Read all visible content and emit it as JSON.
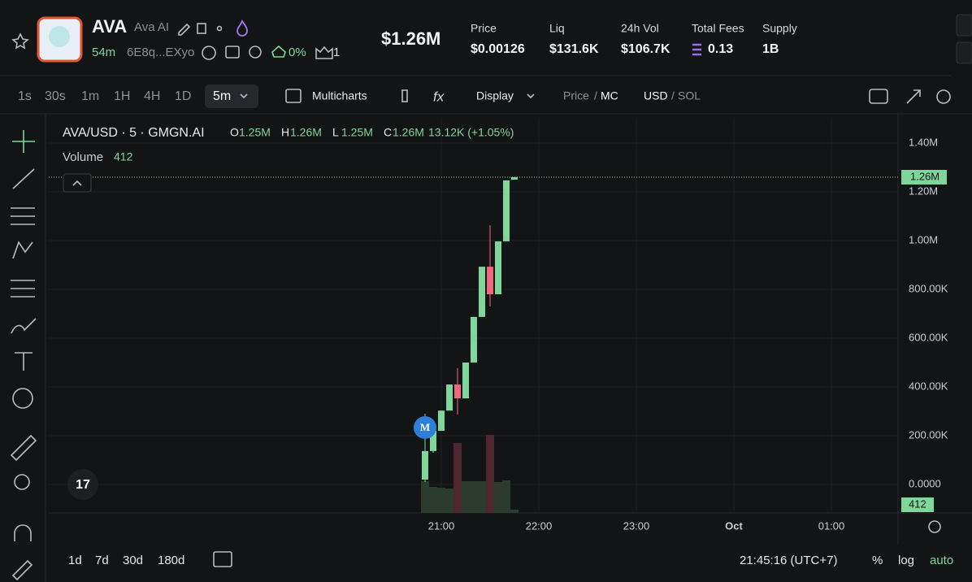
{
  "header": {
    "symbol": "AVA",
    "name": "Ava AI",
    "age": "54m",
    "address": "6E8q...EXyo",
    "holders_pct": "0%",
    "count": "1",
    "market_cap": "$1.26M",
    "stats": [
      {
        "label": "Price",
        "value": "$0.00126"
      },
      {
        "label": "Liq",
        "value": "$131.6K"
      },
      {
        "label": "24h Vol",
        "value": "$106.7K"
      },
      {
        "label": "Total Fees",
        "value": "0.13"
      },
      {
        "label": "Supply",
        "value": "1B"
      }
    ]
  },
  "toolbar": {
    "intervals": [
      "1s",
      "30s",
      "1m",
      "1H",
      "4H",
      "1D"
    ],
    "selected": "5m",
    "multicharts": "Multicharts",
    "display": "Display",
    "price": "Price",
    "mc": "MC",
    "usd": "USD",
    "sol": "SOL"
  },
  "chart": {
    "type": "candlestick",
    "legend": {
      "symbol": "AVA/USD · 5 · GMGN.AI",
      "ohlc": [
        {
          "key": "O",
          "value": "1.25M"
        },
        {
          "key": "H",
          "value": "1.26M"
        },
        {
          "key": "L",
          "value": "1.25M"
        },
        {
          "key": "C",
          "value": "1.26M"
        }
      ],
      "change": "13.12K (+1.05%)",
      "volume_label": "Volume",
      "volume_value": "412"
    },
    "x": [
      1250,
      1255,
      1260,
      1265,
      1270,
      1275,
      1280,
      1285,
      1290,
      1295,
      1300,
      1305
    ],
    "open": [
      20000,
      137000,
      220000,
      303000,
      410000,
      353000,
      500000,
      687000,
      893000,
      780000,
      997000,
      1250000
    ],
    "high": [
      290000,
      230000,
      303000,
      410000,
      477000,
      500000,
      687000,
      893000,
      1063000,
      997000,
      1247000,
      1260000
    ],
    "low": [
      10000,
      130000,
      220000,
      303000,
      287000,
      353000,
      500000,
      687000,
      730000,
      780000,
      997000,
      1250000
    ],
    "close": [
      137000,
      220000,
      303000,
      410000,
      353000,
      500000,
      687000,
      893000,
      780000,
      997000,
      1247000,
      1260000
    ],
    "volume": [
      3900,
      3200,
      3100,
      3000,
      8600,
      3900,
      3900,
      3900,
      9600,
      3800,
      4000,
      412
    ],
    "vlim": [
      0,
      12000
    ],
    "up_color": "#7fd69b",
    "down_color": "#f0677c",
    "up_volume_color": "#2c3b2f",
    "down_volume_color": "#4f2630",
    "xlim": [
      1018.5,
      1541
    ],
    "xticks": [
      {
        "value": 1260,
        "label": "21:00"
      },
      {
        "value": 1320,
        "label": "22:00"
      },
      {
        "value": 1380,
        "label": "23:00"
      },
      {
        "value": 1440,
        "label": "Oct"
      },
      {
        "value": 1500,
        "label": "01:00"
      }
    ],
    "ylim": [
      -116667,
      1503333
    ],
    "yticks": [
      {
        "value": 0,
        "label": "0.0000"
      },
      {
        "value": 200000,
        "label": "200.00K"
      },
      {
        "value": 400000,
        "label": "400.00K"
      },
      {
        "value": 600000,
        "label": "600.00K"
      },
      {
        "value": 800000,
        "label": "800.00K"
      },
      {
        "value": 1000000,
        "label": "1.00M"
      },
      {
        "value": 1200000,
        "label": "1.20M"
      },
      {
        "value": 1400000,
        "label": "1.40M"
      }
    ],
    "last_price": {
      "value": 1260000,
      "label": "1.26M"
    },
    "grid": true
  },
  "footer": {
    "ranges": [
      "1d",
      "7d",
      "30d",
      "180d"
    ],
    "clock": "21:45:16 (UTC+7)",
    "percent": "%",
    "log": "log",
    "auto": "auto"
  }
}
